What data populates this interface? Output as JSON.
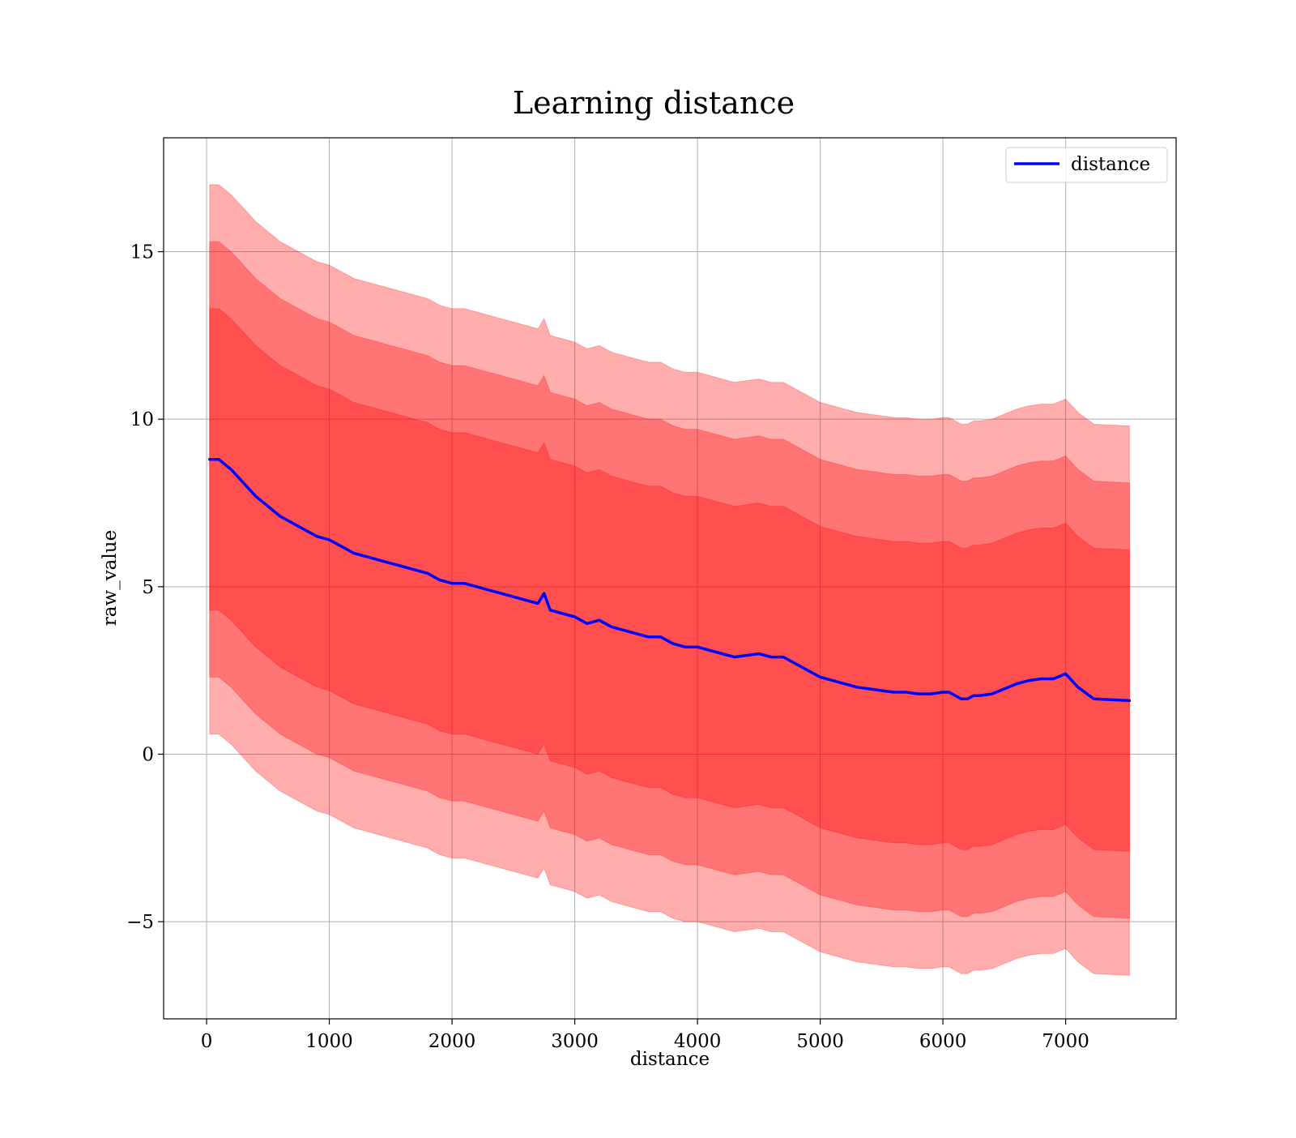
{
  "chart_data": {
    "type": "line",
    "title": "Learning distance",
    "xlabel": "distance",
    "ylabel": "raw_value",
    "xlim": [
      -350,
      7900
    ],
    "ylim": [
      -7.9,
      18.4
    ],
    "xticks": [
      0,
      1000,
      2000,
      3000,
      4000,
      5000,
      6000,
      7000
    ],
    "xtick_labels": [
      "0",
      "1000",
      "2000",
      "3000",
      "4000",
      "5000",
      "6000",
      "7000"
    ],
    "yticks": [
      -5,
      0,
      5,
      10,
      15
    ],
    "ytick_labels": [
      "−5",
      "0",
      "5",
      "10",
      "15"
    ],
    "grid": true,
    "legend": {
      "placement": "top-right",
      "entries": [
        "distance"
      ]
    },
    "colors": {
      "line": "#0000ff",
      "band": "#ff0000",
      "grid": "#b0b0b0",
      "axes": "#000000"
    },
    "series": [
      {
        "name": "distance",
        "x": [
          25,
          100,
          200,
          300,
          400,
          500,
          600,
          700,
          800,
          900,
          1000,
          1100,
          1200,
          1300,
          1400,
          1500,
          1600,
          1700,
          1800,
          1900,
          2000,
          2100,
          2200,
          2300,
          2400,
          2500,
          2600,
          2700,
          2750,
          2800,
          2900,
          3000,
          3100,
          3200,
          3300,
          3400,
          3500,
          3600,
          3700,
          3800,
          3900,
          4000,
          4100,
          4200,
          4300,
          4400,
          4500,
          4600,
          4700,
          4800,
          4900,
          5000,
          5100,
          5200,
          5300,
          5400,
          5500,
          5600,
          5700,
          5800,
          5900,
          6000,
          6050,
          6150,
          6200,
          6250,
          6300,
          6400,
          6500,
          6600,
          6700,
          6800,
          6900,
          7000,
          7100,
          7230,
          7520
        ],
        "values": [
          8.8,
          8.8,
          8.5,
          8.1,
          7.7,
          7.4,
          7.1,
          6.9,
          6.7,
          6.5,
          6.4,
          6.2,
          6.0,
          5.9,
          5.8,
          5.7,
          5.6,
          5.5,
          5.4,
          5.2,
          5.1,
          5.1,
          5.0,
          4.9,
          4.8,
          4.7,
          4.6,
          4.5,
          4.8,
          4.3,
          4.2,
          4.1,
          3.9,
          4.0,
          3.8,
          3.7,
          3.6,
          3.5,
          3.5,
          3.3,
          3.2,
          3.2,
          3.1,
          3.0,
          2.9,
          2.95,
          3.0,
          2.9,
          2.9,
          2.7,
          2.5,
          2.3,
          2.2,
          2.1,
          2.0,
          1.95,
          1.9,
          1.85,
          1.85,
          1.8,
          1.8,
          1.85,
          1.85,
          1.65,
          1.65,
          1.75,
          1.75,
          1.8,
          1.95,
          2.1,
          2.2,
          2.25,
          2.25,
          2.4,
          2.0,
          1.65,
          1.6
        ]
      }
    ],
    "bands": [
      {
        "level": 1,
        "lower_offset": -4.5,
        "upper_offset": 4.5
      },
      {
        "level": 2,
        "lower_offset": -6.5,
        "upper_offset": 6.5
      },
      {
        "level": 3,
        "lower_offset": -8.2,
        "upper_offset": 8.2
      }
    ]
  }
}
